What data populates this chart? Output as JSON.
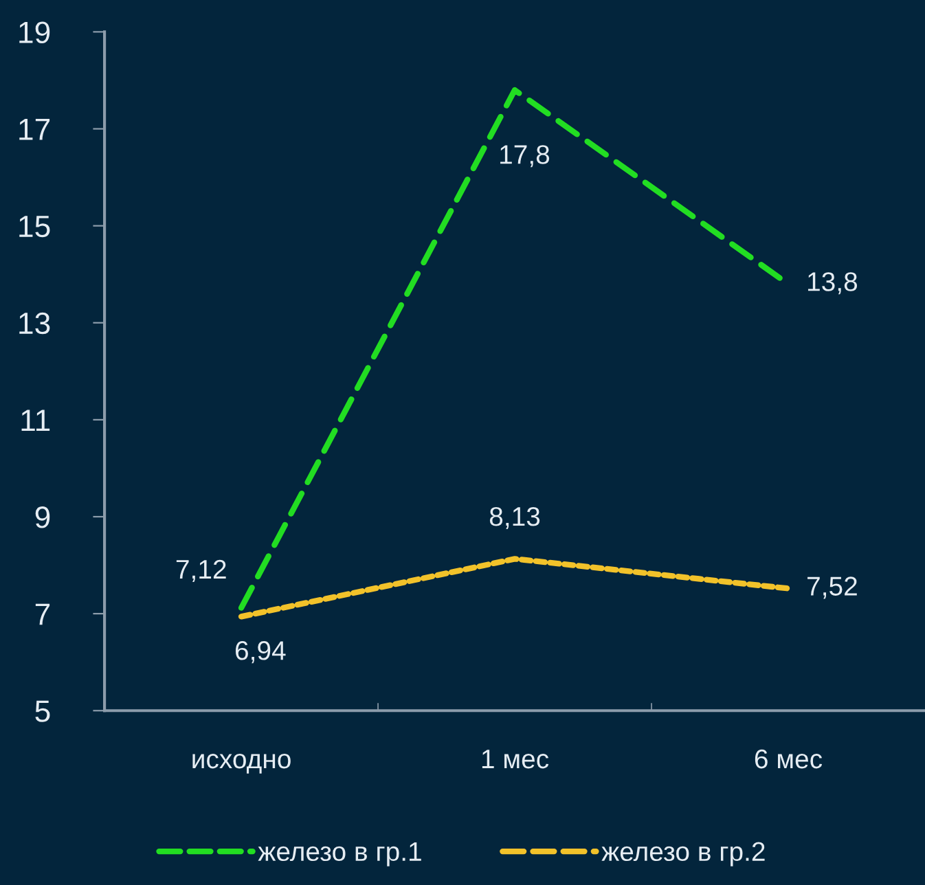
{
  "chart_data": {
    "type": "line",
    "categories": [
      "исходно",
      "1 мес",
      "6 мес"
    ],
    "series": [
      {
        "name": "железо в гр.1",
        "color": "#22dd22",
        "line_style": "dashed",
        "values": [
          7.12,
          17.8,
          13.8
        ],
        "value_labels": [
          "7,12",
          "17,8",
          "13,8"
        ]
      },
      {
        "name": "железо в гр.2",
        "color": "#f2c22a",
        "line_style": "dotted",
        "values": [
          6.94,
          8.13,
          7.52
        ],
        "value_labels": [
          "6,94",
          "8,13",
          "7,52"
        ]
      }
    ],
    "ylim": [
      5,
      19
    ],
    "yticks": [
      5,
      7,
      9,
      11,
      13,
      15,
      17,
      19
    ],
    "legend": "bottom"
  }
}
